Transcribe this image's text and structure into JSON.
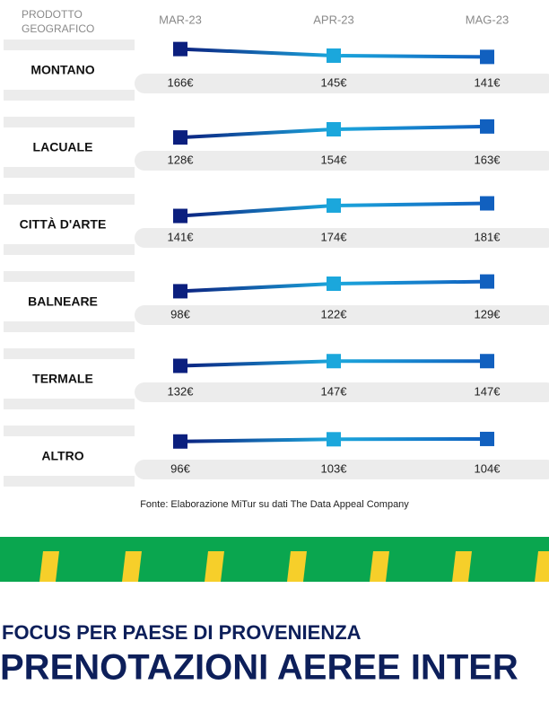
{
  "chart_data": {
    "type": "line",
    "header": [
      "PRODOTTO",
      "GEOGRAFICO"
    ],
    "categories": [
      "MAR-23",
      "APR-23",
      "MAG-23"
    ],
    "marker_colors": [
      "#0b1f7e",
      "#1ba7dc",
      "#1160bf"
    ],
    "series": [
      {
        "name": "MONTANO",
        "values": [
          166,
          145,
          141
        ],
        "value_labels": [
          "166€",
          "145€",
          "141€"
        ]
      },
      {
        "name": "LACUALE",
        "values": [
          128,
          154,
          163
        ],
        "value_labels": [
          "128€",
          "154€",
          "163€"
        ]
      },
      {
        "name": "CITTÀ D'ARTE",
        "values": [
          141,
          174,
          181
        ],
        "value_labels": [
          "141€",
          "174€",
          "181€"
        ]
      },
      {
        "name": "BALNEARE",
        "values": [
          98,
          122,
          129
        ],
        "value_labels": [
          "98€",
          "122€",
          "129€"
        ]
      },
      {
        "name": "TERMALE",
        "values": [
          132,
          147,
          147
        ],
        "value_labels": [
          "132€",
          "147€",
          "147€"
        ]
      },
      {
        "name": "ALTRO",
        "values": [
          96,
          103,
          104
        ],
        "value_labels": [
          "96€",
          "103€",
          "104€"
        ]
      }
    ],
    "source": "Fonte: Elaborazione MiTur su dati The Data Appeal Company"
  },
  "section": {
    "kicker": "FOCUS PER PAESE DI PROVENIENZA",
    "title": "PRENOTAZIONI AEREE INTER"
  }
}
